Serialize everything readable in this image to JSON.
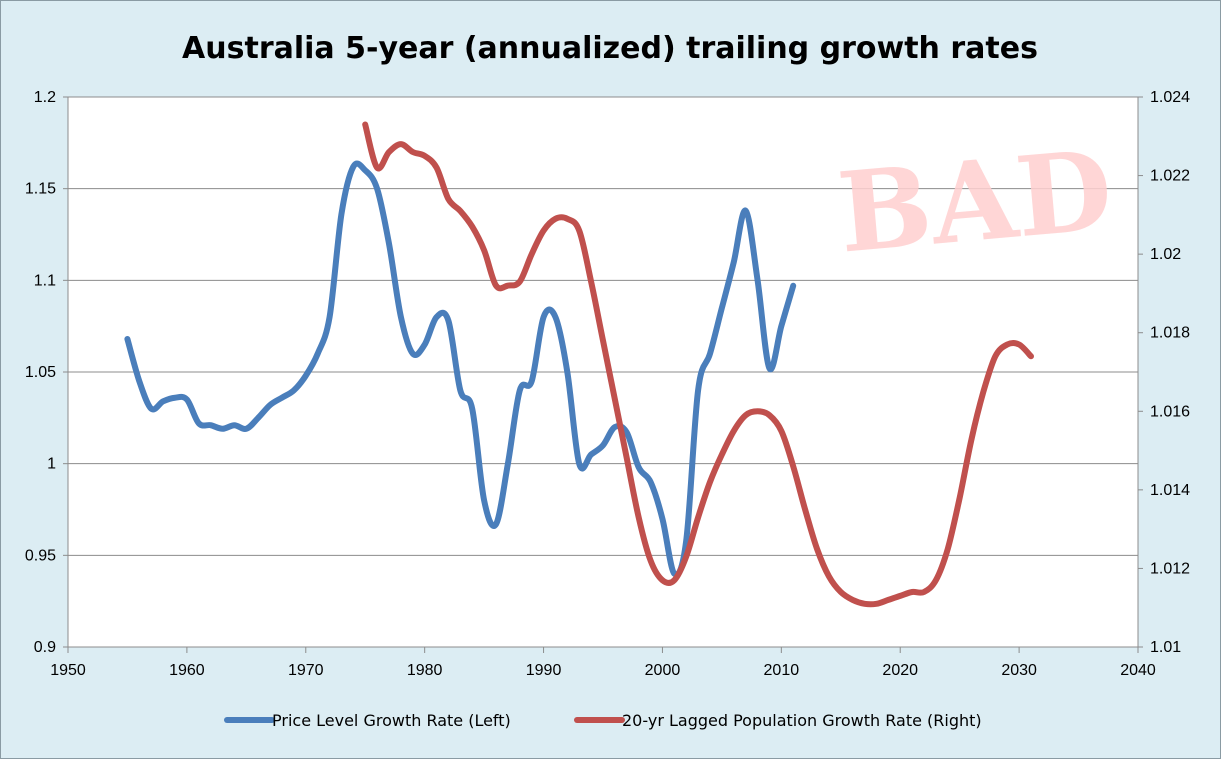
{
  "chart_data": {
    "type": "line",
    "title": "Australia 5-year (annualized) trailing growth rates",
    "watermark": "BAD",
    "xlim": [
      1950,
      2040
    ],
    "x_ticks": [
      1950,
      1960,
      1970,
      1980,
      1990,
      2000,
      2010,
      2020,
      2030,
      2040
    ],
    "y_left": {
      "lim": [
        0.9,
        1.2
      ],
      "ticks": [
        0.9,
        0.95,
        1,
        1.05,
        1.1,
        1.15,
        1.2
      ],
      "tick_labels": [
        "0.9",
        "0.95",
        "1",
        "1.05",
        "1.1",
        "1.15",
        "1.2"
      ]
    },
    "y_right": {
      "lim": [
        1.01,
        1.024
      ],
      "ticks": [
        1.01,
        1.012,
        1.014,
        1.016,
        1.018,
        1.02,
        1.022,
        1.024
      ],
      "tick_labels": [
        "1.01",
        "1.012",
        "1.014",
        "1.016",
        "1.018",
        "1.02",
        "1.022",
        "1.024"
      ]
    },
    "grid": true,
    "legend_position": "bottom",
    "series": [
      {
        "name": "Price Level Growth Rate (Left)",
        "axis": "left",
        "color": "#4a7ebb",
        "x": [
          1955,
          1956,
          1957,
          1958,
          1959,
          1960,
          1961,
          1962,
          1963,
          1964,
          1965,
          1966,
          1967,
          1968,
          1969,
          1970,
          1971,
          1972,
          1973,
          1974,
          1975,
          1976,
          1977,
          1978,
          1979,
          1980,
          1981,
          1982,
          1983,
          1984,
          1985,
          1986,
          1987,
          1988,
          1989,
          1990,
          1991,
          1992,
          1993,
          1994,
          1995,
          1996,
          1997,
          1998,
          1999,
          2000,
          2001,
          2002,
          2003,
          2004,
          2005,
          2006,
          2007,
          2008,
          2009,
          2010,
          2011
        ],
        "values": [
          1.068,
          1.045,
          1.03,
          1.034,
          1.036,
          1.035,
          1.022,
          1.021,
          1.019,
          1.021,
          1.019,
          1.025,
          1.032,
          1.036,
          1.04,
          1.048,
          1.06,
          1.08,
          1.136,
          1.162,
          1.16,
          1.15,
          1.12,
          1.08,
          1.06,
          1.065,
          1.08,
          1.078,
          1.04,
          1.03,
          0.98,
          0.967,
          1.0,
          1.04,
          1.045,
          1.08,
          1.08,
          1.05,
          1.0,
          1.005,
          1.01,
          1.02,
          1.017,
          0.998,
          0.99,
          0.97,
          0.94,
          0.958,
          1.04,
          1.06,
          1.085,
          1.11,
          1.138,
          1.1,
          1.052,
          1.075,
          1.097
        ]
      },
      {
        "name": "20-yr Lagged Population Growth Rate (Right)",
        "axis": "right",
        "color": "#c0504d",
        "x": [
          1975,
          1976,
          1977,
          1978,
          1979,
          1980,
          1981,
          1982,
          1983,
          1984,
          1985,
          1986,
          1987,
          1988,
          1989,
          1990,
          1991,
          1992,
          1993,
          1994,
          1995,
          1996,
          1997,
          1998,
          1999,
          2000,
          2001,
          2002,
          2003,
          2004,
          2005,
          2006,
          2007,
          2008,
          2009,
          2010,
          2011,
          2012,
          2013,
          2014,
          2015,
          2016,
          2017,
          2018,
          2019,
          2020,
          2021,
          2022,
          2023,
          2024,
          2025,
          2026,
          2027,
          2028,
          2029,
          2030,
          2031
        ],
        "values": [
          1.0233,
          1.0222,
          1.0226,
          1.0228,
          1.0226,
          1.0225,
          1.0222,
          1.0214,
          1.0211,
          1.0207,
          1.0201,
          1.0192,
          1.0192,
          1.0193,
          1.02,
          1.0206,
          1.0209,
          1.0209,
          1.0206,
          1.0193,
          1.0178,
          1.0163,
          1.0148,
          1.0133,
          1.0122,
          1.0117,
          1.0117,
          1.0123,
          1.0133,
          1.0142,
          1.0149,
          1.0155,
          1.0159,
          1.016,
          1.0159,
          1.0155,
          1.0146,
          1.0135,
          1.0125,
          1.0118,
          1.0114,
          1.0112,
          1.0111,
          1.0111,
          1.0112,
          1.0113,
          1.0114,
          1.0114,
          1.0117,
          1.0125,
          1.0138,
          1.0153,
          1.0165,
          1.0174,
          1.0177,
          1.0177,
          1.0174
        ]
      }
    ]
  }
}
